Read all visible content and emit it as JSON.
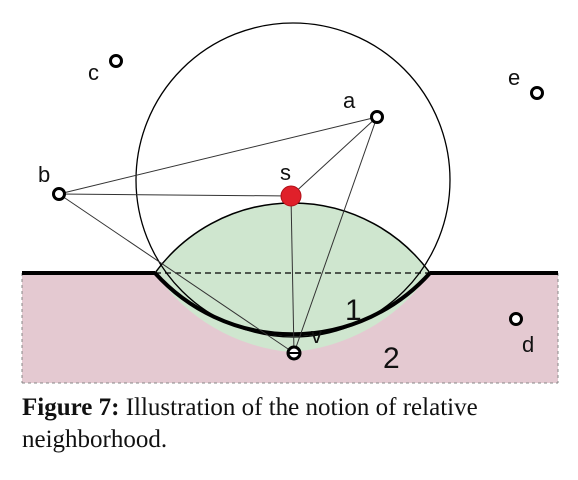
{
  "points": {
    "a": "a",
    "b": "b",
    "c": "c",
    "d": "d",
    "e": "e",
    "s": "s",
    "v": "v"
  },
  "regions": {
    "region_1": "1",
    "region_2": "2"
  },
  "caption": {
    "figure_label": "Figure 7:",
    "text": "Illustration of the notion of relative neighborhood."
  },
  "colors": {
    "pink_region": "#e4c9d1",
    "green_lens": "#cfe6cf",
    "highlight_point": "#e0202a",
    "line": "#000000"
  }
}
